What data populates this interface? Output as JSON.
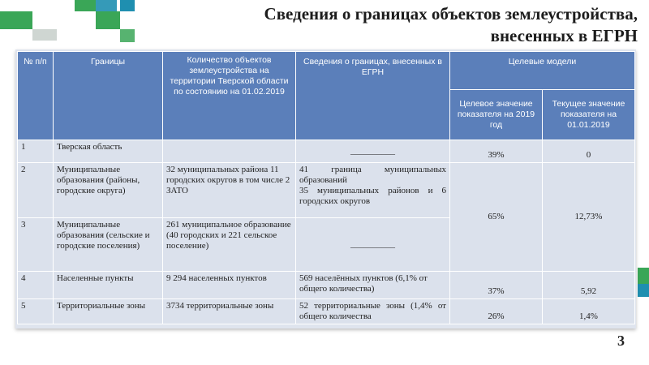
{
  "slide": {
    "title_line1": "Сведения о границах объектов землеустройства,",
    "title_line2": "внесенных в ЕГРН",
    "page_number": "3"
  },
  "colors": {
    "header_blue": "#5b7fba",
    "row_fill": "#dbe1ec",
    "accent_green": "#3aa657",
    "accent_teal": "#1f8fb0"
  },
  "table": {
    "headers": {
      "num": "№ п/п",
      "boundaries": "Границы",
      "count": "Количество объектов землеустройства на территории Тверской области по состоянию на 01.02.2019",
      "info": "Сведения о границах, внесенных в ЕГРН",
      "target_models": "Целевые модели",
      "target_value": "Целевое значение показателя на 2019 год",
      "current_value": "Текущее значение показателя на 01.01.2019"
    },
    "rows": [
      {
        "num": "1",
        "name": "Тверская область",
        "count": "",
        "info": "__________",
        "target": "39%",
        "current": "0"
      },
      {
        "num": "2",
        "name": "Муниципальные образования (районы, городские округа)",
        "count": "32 муниципальных района 11 городских округов в том числе 2 ЗАТО",
        "info_line1": "41 граница муниципальных образований",
        "info_line2": "35 муниципальных районов и 6 городских округов",
        "target": "65%",
        "current": "12,73%"
      },
      {
        "num": "3",
        "name": "Муниципальные образования (сельские и городские поселения)",
        "count": "261 муниципальное образование (40 городских и 221 сельское поселение)",
        "info": "__________"
      },
      {
        "num": "4",
        "name": "Населенные пункты",
        "count": "9 294 населенных пунктов",
        "info": "569 населённых пунктов (6,1% от общего количества)",
        "target": "37%",
        "current": "5,92"
      },
      {
        "num": "5",
        "name": "Территориальные зоны",
        "count": "3734 территориальные зоны",
        "info": "52 территориальные зоны (1,4% от общего количества",
        "target": "26%",
        "current": "1,4%"
      }
    ]
  }
}
